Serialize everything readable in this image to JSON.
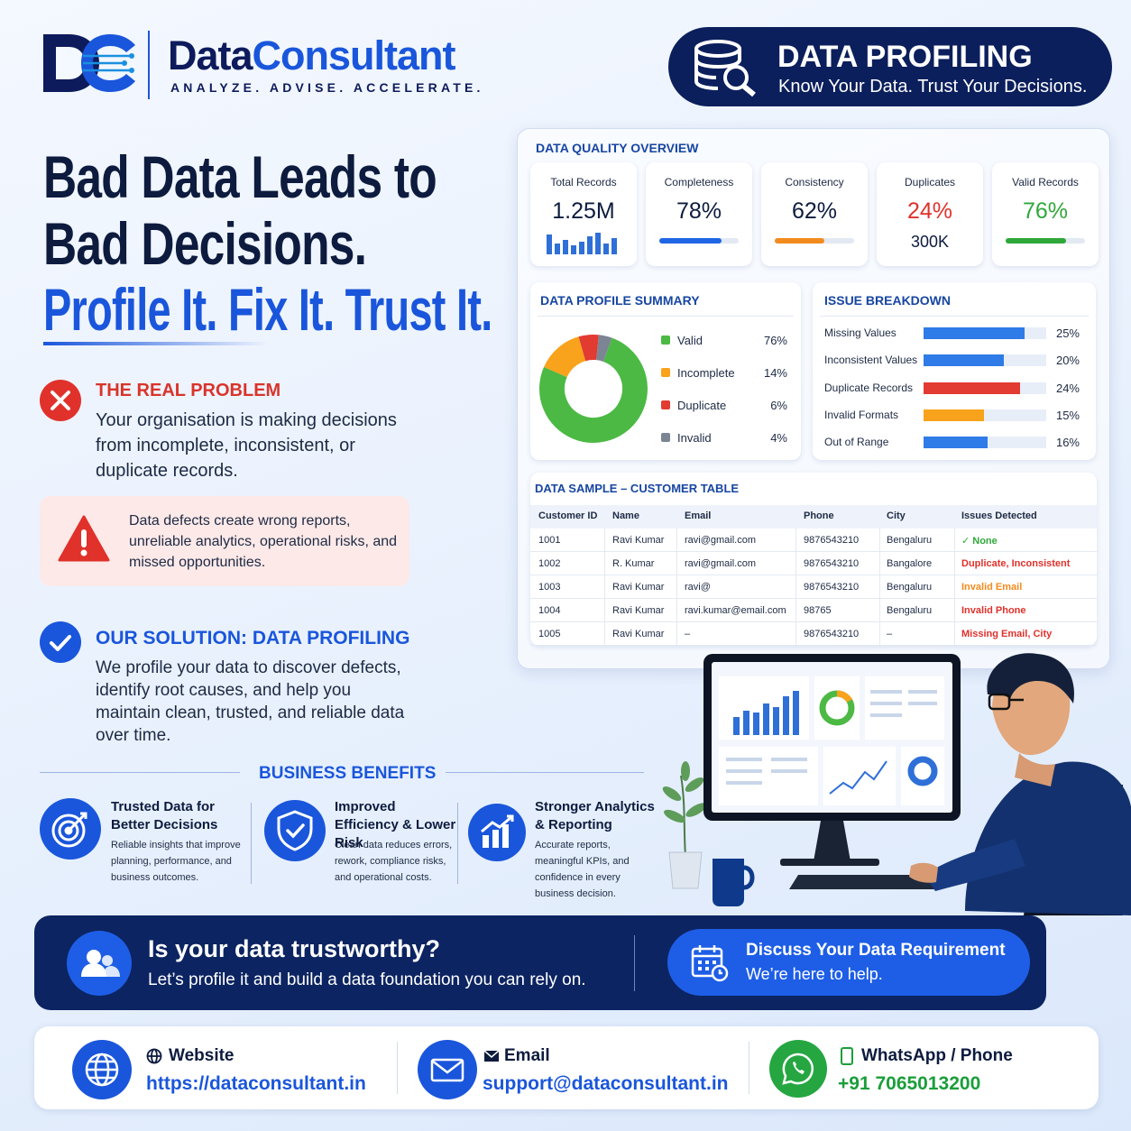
{
  "header": {
    "brand_part1": "Data",
    "brand_part2": "Consultant",
    "tagline": "ANALYZE. ADVISE. ACCELERATE.",
    "badge_title": "DATA PROFILING",
    "badge_subtitle": "Know Your Data. Trust Your Decisions."
  },
  "hero": {
    "line1": "Bad Data Leads to",
    "line2": "Bad Decisions.",
    "line3": "Profile It. Fix It. Trust It."
  },
  "problem": {
    "title": "THE REAL PROBLEM",
    "text": "Your organisation is making decisions from incomplete, inconsistent, or duplicate records.",
    "alert": "Data defects create wrong reports, unreliable analytics, operational risks, and missed opportunities."
  },
  "solution": {
    "title": "OUR SOLUTION: DATA PROFILING",
    "text": "We profile your data to discover defects, identify root causes, and help you maintain clean, trusted, and reliable data over time."
  },
  "benefits": {
    "title": "BUSINESS BENEFITS",
    "items": [
      {
        "title": "Trusted Data for Better Decisions",
        "text": "Reliable insights that improve planning, performance, and business outcomes."
      },
      {
        "title": "Improved Efficiency & Lower Risk",
        "text": "Clean data reduces errors, rework, compliance risks, and operational costs."
      },
      {
        "title": "Stronger Analytics & Reporting",
        "text": "Accurate reports, meaningful KPIs, and confidence in every business decision."
      }
    ]
  },
  "quality_overview": {
    "title": "DATA QUALITY OVERVIEW",
    "cards": [
      {
        "label": "Total Records",
        "value_label": "1.25M"
      },
      {
        "label": "Completeness",
        "value": 78,
        "value_label": "78%",
        "color": "#1f66e5"
      },
      {
        "label": "Consistency",
        "value": 62,
        "value_label": "62%",
        "color": "#f28b1e"
      },
      {
        "label": "Duplicates",
        "value_label": "24%",
        "value_color": "#e0312b",
        "sub": "300K"
      },
      {
        "label": "Valid Records",
        "value": 76,
        "value_label": "76%",
        "color": "#2fa83a",
        "value_color": "#2fa83a"
      }
    ]
  },
  "profile_summary": {
    "title": "DATA PROFILE SUMMARY",
    "categories": [
      "Valid",
      "Incomplete",
      "Duplicate",
      "Invalid"
    ],
    "values": [
      76,
      14,
      6,
      4
    ],
    "value_labels": [
      "76%",
      "14%",
      "6%",
      "4%"
    ],
    "colors": [
      "#4cb944",
      "#f9a21b",
      "#e23b32",
      "#7c8594"
    ]
  },
  "issue_breakdown": {
    "title": "ISSUE BREAKDOWN",
    "categories": [
      "Missing Values",
      "Inconsistent Values",
      "Duplicate Records",
      "Invalid Formats",
      "Out of Range"
    ],
    "values": [
      25,
      20,
      24,
      15,
      16
    ],
    "value_labels": [
      "25%",
      "20%",
      "24%",
      "15%",
      "16%"
    ],
    "colors": [
      "#2f7be8",
      "#2f7be8",
      "#e23b32",
      "#f9a21b",
      "#2f7be8"
    ]
  },
  "sample_table": {
    "title": "DATA SAMPLE – CUSTOMER TABLE",
    "columns": [
      "Customer ID",
      "Name",
      "Email",
      "Phone",
      "City",
      "Issues Detected"
    ],
    "rows": [
      [
        "1001",
        "Ravi Kumar",
        "ravi@gmail.com",
        "9876543210",
        "Bengaluru",
        "✓ None"
      ],
      [
        "1002",
        "R. Kumar",
        "ravi@gmail.com",
        "9876543210",
        "Bangalore",
        "Duplicate, Inconsistent"
      ],
      [
        "1003",
        "Ravi Kumar",
        "ravi@",
        "9876543210",
        "Bengaluru",
        "Invalid Email"
      ],
      [
        "1004",
        "Ravi Kumar",
        "ravi.kumar@email.com",
        "98765",
        "Bengaluru",
        "Invalid Phone"
      ],
      [
        "1005",
        "Ravi Kumar",
        "–",
        "9876543210",
        "–",
        "Missing Email, City"
      ]
    ],
    "issue_colors": [
      "#2fa83a",
      "#e0312b",
      "#f28b1e",
      "#e0312b",
      "#e0312b"
    ]
  },
  "cta": {
    "title": "Is your data trustworthy?",
    "text": "Let’s profile it and build a data foundation you can rely on.",
    "button_title": "Discuss Your Data Requirement",
    "button_text": "We’re here to help."
  },
  "contact": [
    {
      "label": "Website",
      "value": "https://dataconsultant.in"
    },
    {
      "label": "Email",
      "value": "support@dataconsultant.in"
    },
    {
      "label": "WhatsApp / Phone",
      "value": "+91 7065013200"
    }
  ]
}
